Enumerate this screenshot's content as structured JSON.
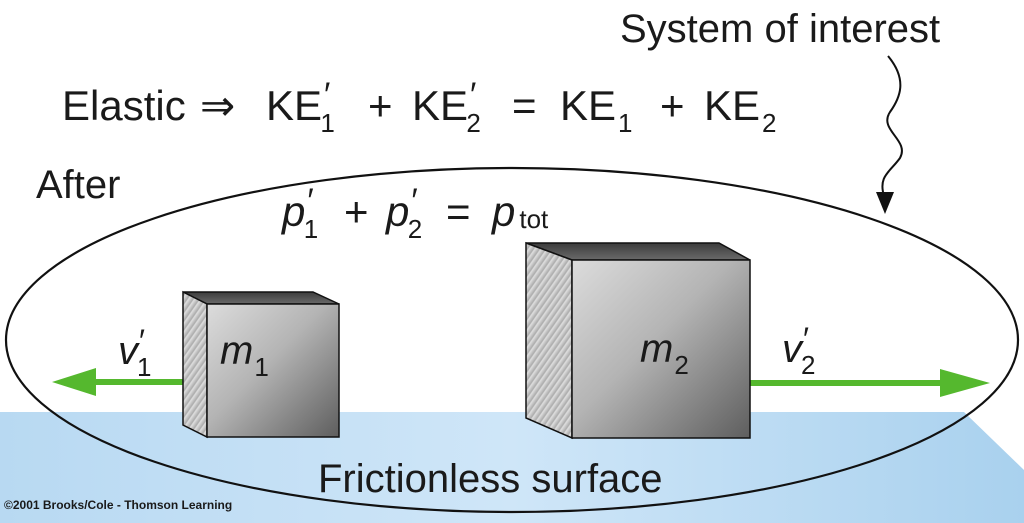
{
  "labels": {
    "system_of_interest": "System of interest",
    "after": "After",
    "frictionless_surface": "Frictionless surface",
    "copyright": "©2001 Brooks/Cole - Thomson Learning"
  },
  "equations": {
    "elastic": {
      "word": "Elastic",
      "implies": "⇒",
      "ke": "KE",
      "prime": "′",
      "sub1": "1",
      "sub2": "2",
      "plus": "+",
      "equals": "="
    },
    "momentum": {
      "p": "p",
      "prime": "′",
      "sub1": "1",
      "sub2": "2",
      "plus": "+",
      "equals": "=",
      "sub_tot": "tot"
    }
  },
  "objects": {
    "mass1": {
      "symbol": "m",
      "sub": "1"
    },
    "mass2": {
      "symbol": "m",
      "sub": "2"
    },
    "velocity1": {
      "symbol": "v",
      "prime": "′",
      "sub": "1"
    },
    "velocity2": {
      "symbol": "v",
      "prime": "′",
      "sub": "2"
    }
  },
  "colors": {
    "arrow_green": "#55b82e",
    "surface_blue": "#bcdcf4",
    "surface_blue_dark": "#9fcbec",
    "cube_front_light": "#d2d2d2",
    "cube_front_dark": "#6f6f6f",
    "cube_top": "#505050",
    "outline": "#111111"
  }
}
